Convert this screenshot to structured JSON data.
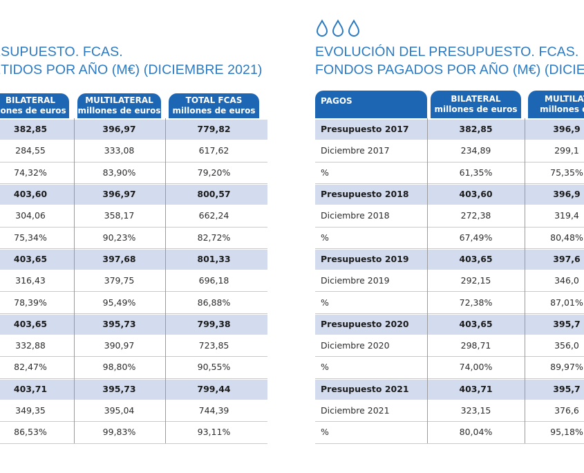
{
  "left": {
    "title_line1": "ESUPUESTO. FCAS.",
    "title_line2": "ETIDOS POR AÑO (M€) (DICIEMBRE 2021)",
    "headers": [
      {
        "line1": "BILATERAL",
        "line2": "llones de euros"
      },
      {
        "line1": "MULTILATERAL",
        "line2": "millones de euros"
      },
      {
        "line1": "TOTAL FCAS",
        "line2": "millones de euros"
      }
    ],
    "rows": [
      {
        "type": "presupuesto",
        "cells": [
          "382,85",
          "396,97",
          "779,82"
        ]
      },
      {
        "type": "diciembre",
        "cells": [
          "284,55",
          "333,08",
          "617,62"
        ]
      },
      {
        "type": "percent",
        "cells": [
          "74,32%",
          "83,90%",
          "79,20%"
        ]
      },
      {
        "type": "presupuesto",
        "cells": [
          "403,60",
          "396,97",
          "800,57"
        ]
      },
      {
        "type": "diciembre",
        "cells": [
          "304,06",
          "358,17",
          "662,24"
        ]
      },
      {
        "type": "percent",
        "cells": [
          "75,34%",
          "90,23%",
          "82,72%"
        ]
      },
      {
        "type": "presupuesto",
        "cells": [
          "403,65",
          "397,68",
          "801,33"
        ]
      },
      {
        "type": "diciembre",
        "cells": [
          "316,43",
          "379,75",
          "696,18"
        ]
      },
      {
        "type": "percent",
        "cells": [
          "78,39%",
          "95,49%",
          "86,88%"
        ]
      },
      {
        "type": "presupuesto",
        "cells": [
          "403,65",
          "395,73",
          "799,38"
        ]
      },
      {
        "type": "diciembre",
        "cells": [
          "332,88",
          "390,97",
          "723,85"
        ]
      },
      {
        "type": "percent",
        "cells": [
          "82,47%",
          "98,80%",
          "90,55%"
        ]
      },
      {
        "type": "presupuesto",
        "cells": [
          "403,71",
          "395,73",
          "799,44"
        ]
      },
      {
        "type": "diciembre",
        "cells": [
          "349,35",
          "395,04",
          "744,39"
        ]
      },
      {
        "type": "percent",
        "cells": [
          "86,53%",
          "99,83%",
          "93,11%"
        ]
      }
    ]
  },
  "right": {
    "title_line1": "EVOLUCIÓN DEL PRESUPUESTO. FCAS.",
    "title_line2": "FONDOS PAGADOS POR AÑO (M€) (DICIE",
    "headers": [
      {
        "line1": "PAGOS",
        "line2": ""
      },
      {
        "line1": "BILATERAL",
        "line2": "millones de euros"
      },
      {
        "line1": "MULTILAT",
        "line2": "millones de"
      }
    ],
    "rows": [
      {
        "type": "presupuesto",
        "cells": [
          "Presupuesto 2017",
          "382,85",
          "396,9"
        ]
      },
      {
        "type": "diciembre",
        "cells": [
          "Diciembre 2017",
          "234,89",
          "299,1"
        ]
      },
      {
        "type": "percent",
        "cells": [
          "%",
          "61,35%",
          "75,35%"
        ]
      },
      {
        "type": "presupuesto",
        "cells": [
          "Presupuesto 2018",
          "403,60",
          "396,9"
        ]
      },
      {
        "type": "diciembre",
        "cells": [
          "Diciembre 2018",
          "272,38",
          "319,4"
        ]
      },
      {
        "type": "percent",
        "cells": [
          "%",
          "67,49%",
          "80,48%"
        ]
      },
      {
        "type": "presupuesto",
        "cells": [
          "Presupuesto 2019",
          "403,65",
          "397,6"
        ]
      },
      {
        "type": "diciembre",
        "cells": [
          "Diciembre 2019",
          "292,15",
          "346,0"
        ]
      },
      {
        "type": "percent",
        "cells": [
          "%",
          "72,38%",
          "87,01%"
        ]
      },
      {
        "type": "presupuesto",
        "cells": [
          "Presupuesto 2020",
          "403,65",
          "395,7"
        ]
      },
      {
        "type": "diciembre",
        "cells": [
          "Diciembre 2020",
          "298,71",
          "356,0"
        ]
      },
      {
        "type": "percent",
        "cells": [
          "%",
          "74,00%",
          "89,97%"
        ]
      },
      {
        "type": "presupuesto",
        "cells": [
          "Presupuesto 2021",
          "403,71",
          "395,7"
        ]
      },
      {
        "type": "diciembre",
        "cells": [
          "Diciembre 2021",
          "323,15",
          "376,6"
        ]
      },
      {
        "type": "percent",
        "cells": [
          "%",
          "80,04%",
          "95,18%"
        ]
      }
    ]
  },
  "drop_icon": "water-drop-icon",
  "colors": {
    "header": "#1d66b4",
    "band": "#d3dcef",
    "title": "#2a79c2"
  }
}
